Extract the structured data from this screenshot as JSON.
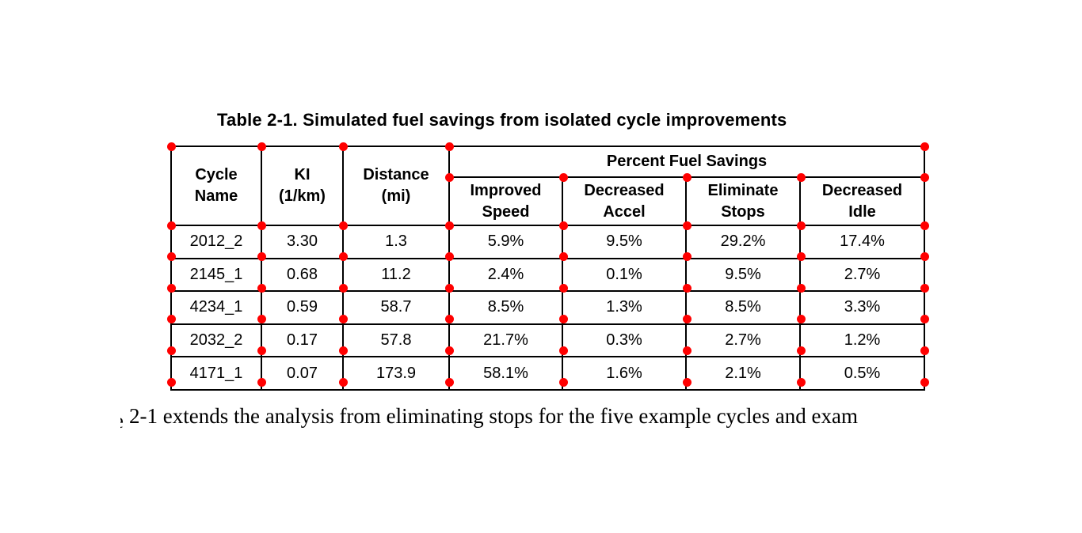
{
  "caption": "Table 2-1. Simulated fuel savings from isolated cycle improvements",
  "table": {
    "headers": {
      "cycle_name": "Cycle\nName",
      "ki": "KI\n(1/km)",
      "distance": "Distance\n(mi)",
      "group": "Percent Fuel Savings",
      "sub": [
        "Improved\nSpeed",
        "Decreased\nAccel",
        "Eliminate\nStops",
        "Decreased\nIdle"
      ]
    },
    "rows": [
      [
        "2012_2",
        "3.30",
        "1.3",
        "5.9%",
        "9.5%",
        "29.2%",
        "17.4%"
      ],
      [
        "2145_1",
        "0.68",
        "11.2",
        "2.4%",
        "0.1%",
        "9.5%",
        "2.7%"
      ],
      [
        "4234_1",
        "0.59",
        "58.7",
        "8.5%",
        "1.3%",
        "8.5%",
        "3.3%"
      ],
      [
        "2032_2",
        "0.17",
        "57.8",
        "21.7%",
        "0.3%",
        "2.7%",
        "1.2%"
      ],
      [
        "4171_1",
        "0.07",
        "173.9",
        "58.1%",
        "1.6%",
        "2.1%",
        "0.5%"
      ]
    ]
  },
  "annotations": {
    "corner_dot_color": "#ff0000"
  },
  "paragraph": {
    "fragment": "e",
    "text": "2-1 extends the analysis from eliminating stops for the five example cycles and exam"
  }
}
